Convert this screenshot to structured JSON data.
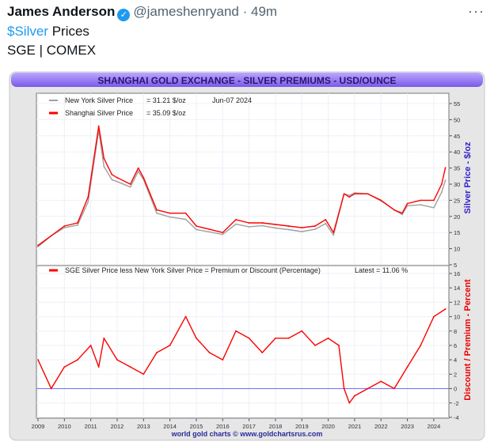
{
  "tweet": {
    "author_name": "James Anderson",
    "verified_icon": "verified-badge-icon",
    "handle": "@jameshenryand",
    "separator": "·",
    "time": "49m",
    "more_icon": "more-options-icon",
    "cashtag": "$Silver",
    "line1_rest": " Prices",
    "line2": "SGE | COMEX"
  },
  "colors": {
    "title_bar": "#8a6cf0",
    "shanghai": "#ff0000",
    "new_york": "#a0a0a0",
    "left_axis_title": "#3322cc",
    "right_axis_title": "#ee0000",
    "zero_line": "#6a6aff"
  },
  "chart_data": [
    {
      "type": "line",
      "title": "SHANGHAI GOLD EXCHANGE - SILVER PREMIUMS - USD/OUNCE",
      "ylabel": "Silver Price - $/oz",
      "ylim": [
        5,
        55
      ],
      "yticks": [
        "55",
        "50",
        "45",
        "40",
        "35",
        "30",
        "25",
        "20",
        "15",
        "10",
        "5"
      ],
      "legend_date": "Jun-07  2024",
      "legend_placement": "top-left",
      "grid": true,
      "x": [
        2009.0,
        2009.5,
        2010.0,
        2010.5,
        2010.9,
        2011.3,
        2011.5,
        2011.8,
        2012.0,
        2012.5,
        2012.8,
        2013.0,
        2013.5,
        2014.0,
        2014.6,
        2015.0,
        2015.5,
        2016.0,
        2016.5,
        2017.0,
        2017.5,
        2018.0,
        2018.5,
        2019.0,
        2019.5,
        2019.9,
        2020.2,
        2020.6,
        2020.8,
        2021.0,
        2021.5,
        2022.0,
        2022.5,
        2022.8,
        2023.0,
        2023.5,
        2024.0,
        2024.3,
        2024.44
      ],
      "series": [
        {
          "name": "New York Silver Price",
          "legend_value": "= 31.21 $/oz",
          "values": [
            10.6,
            14,
            16.5,
            17.3,
            24.5,
            46.6,
            35.5,
            31.4,
            30.8,
            29.1,
            34,
            31.4,
            21,
            19.8,
            19.1,
            15.9,
            15.2,
            14.4,
            17.6,
            16.8,
            17.1,
            16.4,
            15.9,
            15.3,
            16,
            17.8,
            14.2,
            27,
            26.5,
            27.3,
            27,
            24.8,
            22,
            20.6,
            23.3,
            23.6,
            22.7,
            27.5,
            31.21
          ]
        },
        {
          "name": "Shanghai Silver Price",
          "legend_value": "= 35.09 $/oz",
          "values": [
            11,
            14,
            17,
            18,
            26,
            48,
            38,
            33,
            32,
            30,
            35,
            32,
            22,
            21,
            21,
            17,
            16,
            15,
            19,
            18,
            18,
            17.5,
            17,
            16.5,
            17,
            19,
            15,
            27,
            26,
            27,
            27,
            25,
            22,
            21,
            24,
            25,
            25,
            30,
            35.09
          ]
        }
      ]
    },
    {
      "type": "line",
      "ylabel": "Discount / Premium - Percent",
      "ylim": [
        -4,
        16
      ],
      "yticks": [
        "16",
        "14",
        "12",
        "10",
        "8",
        "6",
        "4",
        "2",
        "0",
        "-2",
        "-4"
      ],
      "xlim": [
        2009,
        2024.5
      ],
      "xticks": [
        "2009",
        "2010",
        "2011",
        "2012",
        "2013",
        "2014",
        "2015",
        "2016",
        "2017",
        "2018",
        "2019",
        "2020",
        "2021",
        "2022",
        "2023",
        "2024"
      ],
      "grid": true,
      "x": [
        2009.0,
        2009.5,
        2010.0,
        2010.5,
        2011.0,
        2011.3,
        2011.5,
        2012.0,
        2012.5,
        2013.0,
        2013.5,
        2014.0,
        2014.6,
        2015.0,
        2015.5,
        2016.0,
        2016.5,
        2017.0,
        2017.5,
        2018.0,
        2018.5,
        2019.0,
        2019.5,
        2020.0,
        2020.4,
        2020.6,
        2020.8,
        2021.0,
        2021.5,
        2022.0,
        2022.5,
        2023.0,
        2023.5,
        2024.0,
        2024.44
      ],
      "series": [
        {
          "name": "SGE Silver Price less New York Silver Price = Premium or Discount (Percentage)",
          "legend_value": "Latest = 11.06 %",
          "values": [
            4,
            0,
            3,
            4,
            6,
            3,
            7,
            4,
            3,
            2,
            5,
            6,
            10,
            7,
            5,
            4,
            8,
            7,
            5,
            7,
            7,
            8,
            6,
            7,
            6,
            0,
            -2,
            -1,
            0,
            1,
            0,
            3,
            6,
            10,
            11.06
          ]
        }
      ]
    }
  ],
  "footer": "world gold charts © www.goldchartsrus.com"
}
